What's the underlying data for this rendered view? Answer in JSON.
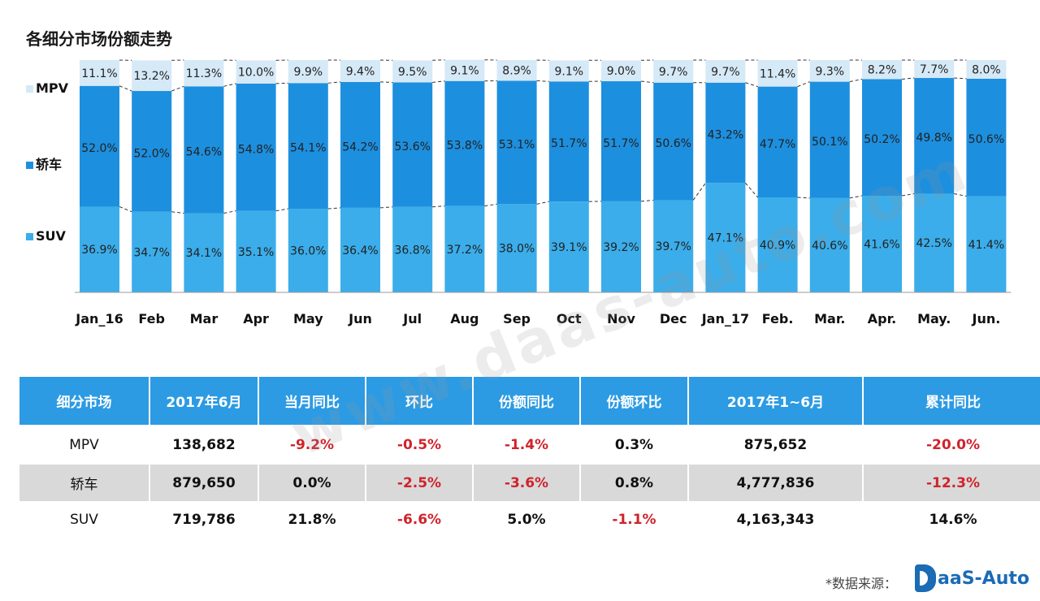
{
  "title": "各细分市场份额走势",
  "chart_data": {
    "type": "bar",
    "stacked": true,
    "percent_stacked": true,
    "categories": [
      "Jan_16",
      "Feb",
      "Mar",
      "Apr",
      "May",
      "Jun",
      "Jul",
      "Aug",
      "Sep",
      "Oct",
      "Nov",
      "Dec",
      "Jan_17",
      "Feb.",
      "Mar.",
      "Apr.",
      "May.",
      "Jun."
    ],
    "series": [
      {
        "name": "SUV",
        "color": "#3badea",
        "values": [
          36.9,
          34.7,
          34.1,
          35.1,
          36.0,
          36.4,
          36.8,
          37.2,
          38.0,
          39.1,
          39.2,
          39.7,
          47.1,
          40.9,
          40.6,
          41.6,
          42.5,
          41.4
        ],
        "labels": [
          "36.9%",
          "34.7%",
          "34.1%",
          "35.1%",
          "36.0%",
          "36.4%",
          "36.8%",
          "37.2%",
          "38.0%",
          "39.1%",
          "39.2%",
          "39.7%",
          "47.1%",
          "40.9%",
          "40.6%",
          "41.6%",
          "42.5%",
          "41.4%"
        ]
      },
      {
        "name": "轿车",
        "color": "#1d8fdf",
        "values": [
          52.0,
          52.0,
          54.6,
          54.8,
          54.1,
          54.2,
          53.6,
          53.8,
          53.1,
          51.7,
          51.7,
          50.6,
          43.2,
          47.7,
          50.1,
          50.2,
          49.8,
          50.6
        ],
        "labels": [
          "52.0%",
          "52.0%",
          "54.6%",
          "54.8%",
          "54.1%",
          "54.2%",
          "53.6%",
          "53.8%",
          "53.1%",
          "51.7%",
          "51.7%",
          "50.6%",
          "43.2%",
          "47.7%",
          "50.1%",
          "50.2%",
          "49.8%",
          "50.6%"
        ]
      },
      {
        "name": "MPV",
        "color": "#d5e9f7",
        "values": [
          11.1,
          13.2,
          11.3,
          10.0,
          9.9,
          9.4,
          9.5,
          9.1,
          8.9,
          9.1,
          9.0,
          9.7,
          9.7,
          11.4,
          9.3,
          8.2,
          7.7,
          8.0
        ],
        "labels": [
          "11.1%",
          "13.2%",
          "11.3%",
          "10.0%",
          "9.9%",
          "9.4%",
          "9.5%",
          "9.1%",
          "8.9%",
          "9.1%",
          "9.0%",
          "9.7%",
          "9.7%",
          "11.4%",
          "9.3%",
          "8.2%",
          "7.7%",
          "8.0%"
        ]
      }
    ],
    "legend": [
      {
        "name": "MPV",
        "color": "#d5e9f7"
      },
      {
        "name": "轿车",
        "color": "#1d8fdf"
      },
      {
        "name": "SUV",
        "color": "#3badea"
      }
    ],
    "legend_position": "left",
    "connector_lines": "dashed"
  },
  "table": {
    "headers": [
      "细分市场",
      "2017年6月",
      "当月同比",
      "环比",
      "份额同比",
      "份额环比",
      "2017年1~6月",
      "累计同比"
    ],
    "rows": [
      {
        "cells": [
          "MPV",
          "138,682",
          "-9.2%",
          "-0.5%",
          "-1.4%",
          "0.3%",
          "875,652",
          "-20.0%"
        ]
      },
      {
        "cells": [
          "轿车",
          "879,650",
          "0.0%",
          "-2.5%",
          "-3.6%",
          "0.8%",
          "4,777,836",
          "-12.3%"
        ]
      },
      {
        "cells": [
          "SUV",
          "719,786",
          "21.8%",
          "-6.6%",
          "5.0%",
          "-1.1%",
          "4,163,343",
          "14.6%"
        ]
      }
    ],
    "negative_color": "#d0232b",
    "header_color": "#2c9be3",
    "shade_color": "#d9d9d9"
  },
  "watermark": "www.daas-auto.com",
  "source_label": "*数据来源：",
  "logo_text": "aaS-Auto"
}
